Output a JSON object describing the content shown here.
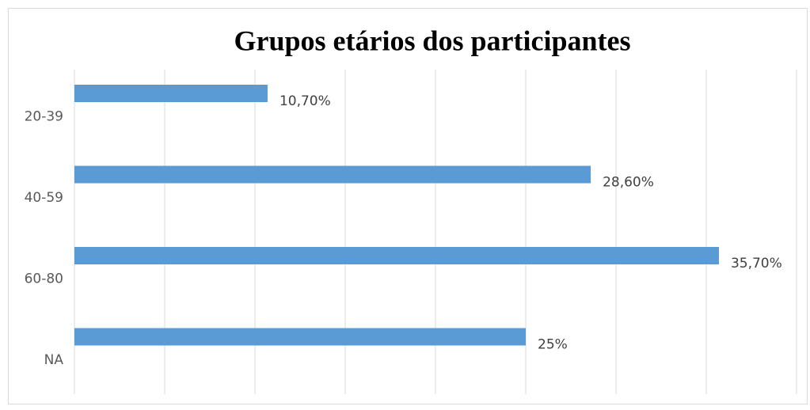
{
  "chart_data": {
    "type": "hbar",
    "title": "Grupos etários dos participantes",
    "categories": [
      "20-39",
      "40-59",
      "60-80",
      "NA"
    ],
    "values": [
      10.7,
      28.6,
      35.7,
      25
    ],
    "value_labels": [
      "10,70%",
      "28,60%",
      "35,70%",
      "25%"
    ],
    "color": "#5b9bd5",
    "xlim": [
      0,
      40
    ],
    "xticks": [
      0,
      5,
      10,
      15,
      20,
      25,
      30,
      35,
      40
    ],
    "grid": true
  }
}
